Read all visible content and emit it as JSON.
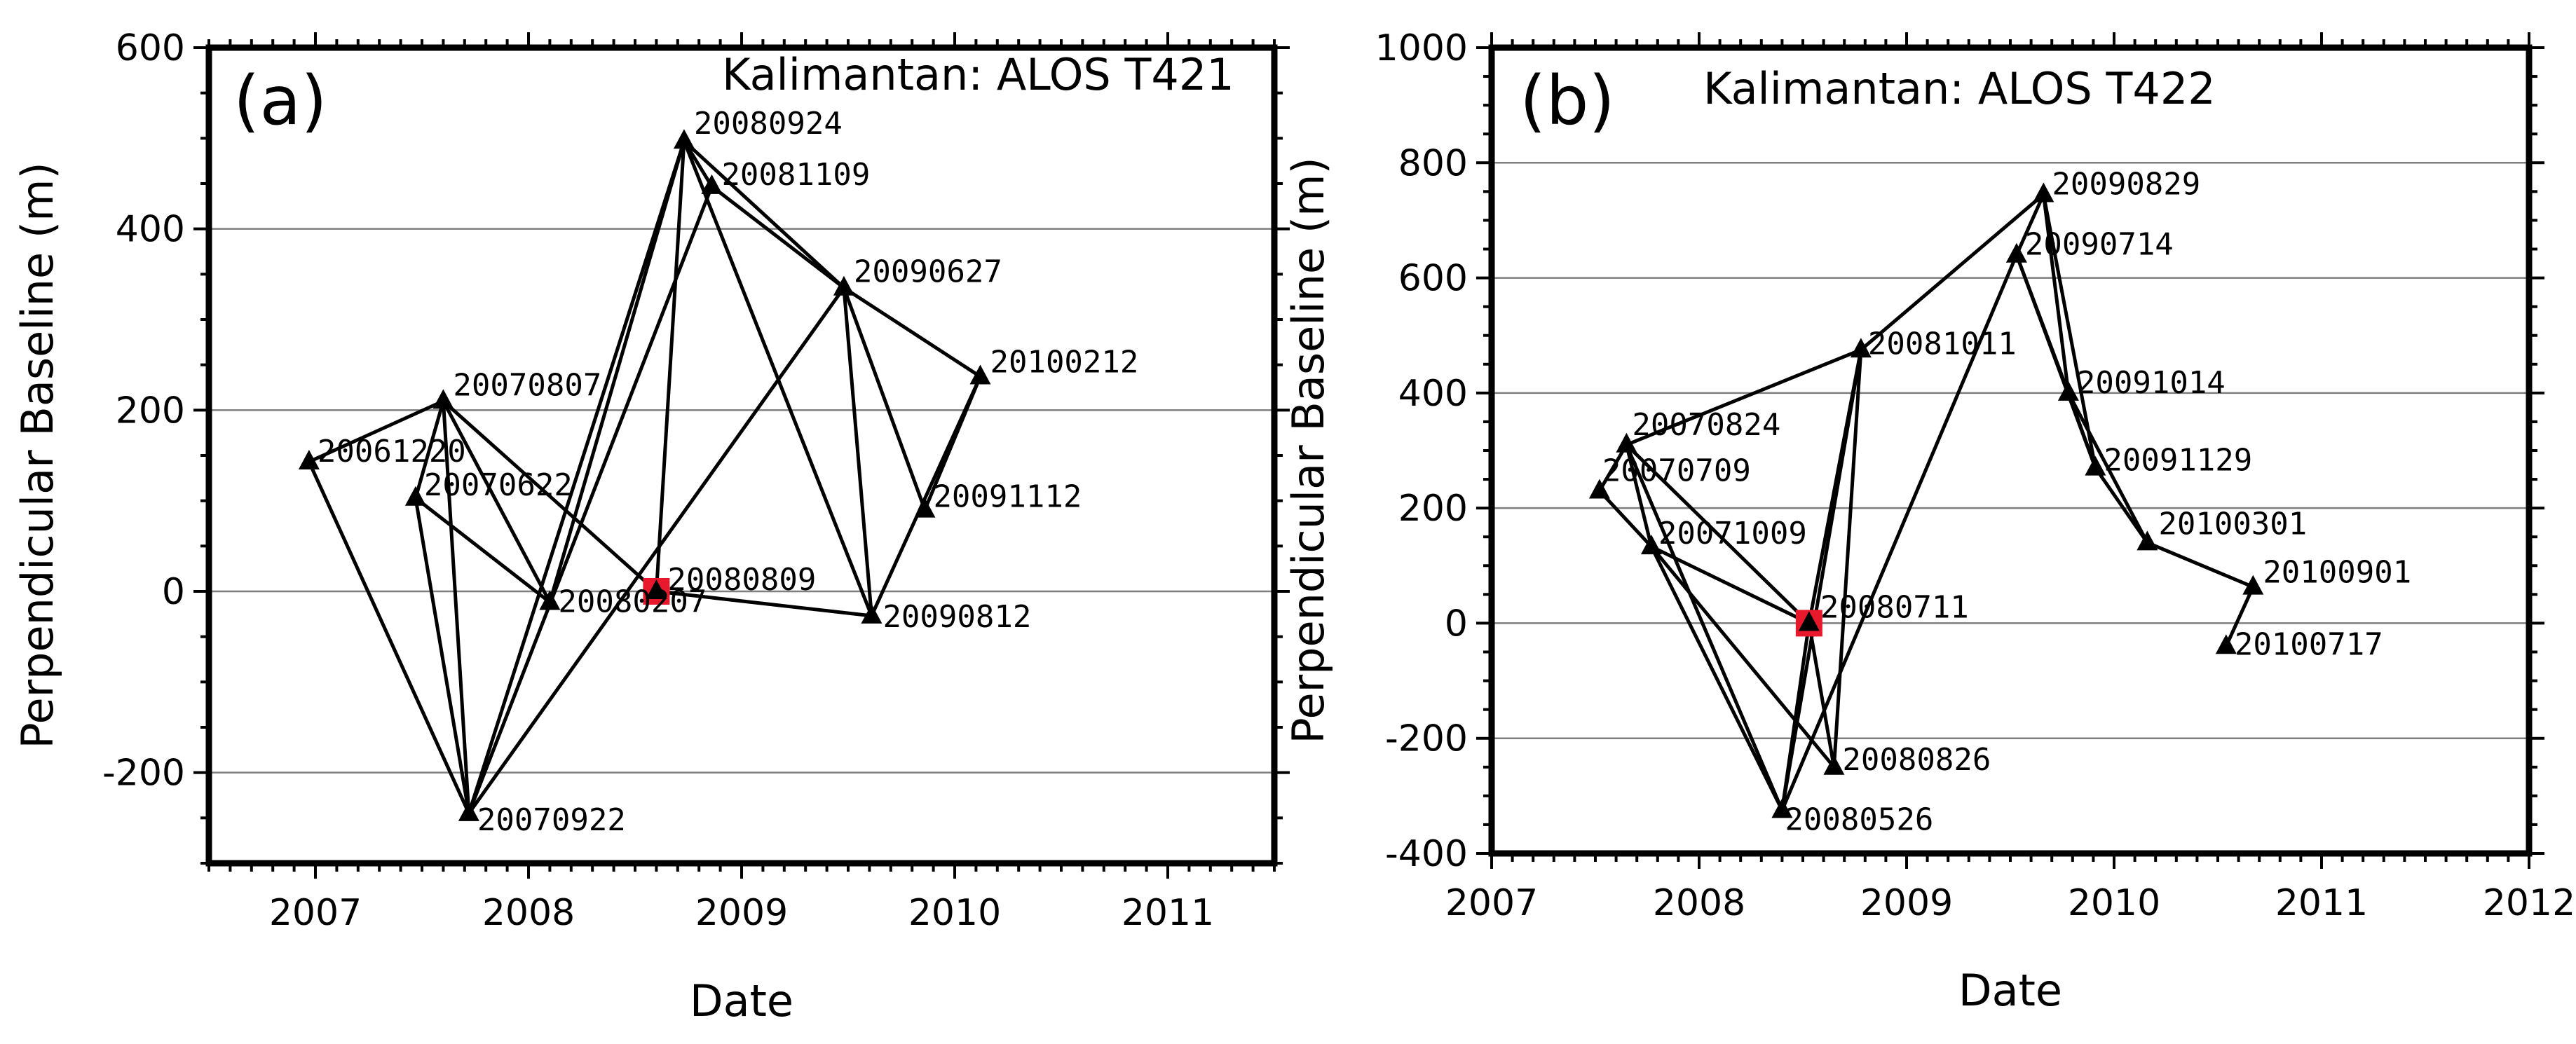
{
  "chart_data": [
    {
      "type": "scatter",
      "panel": "(a)",
      "title": "Kalimantan: ALOS T421",
      "xlabel": "Date",
      "ylabel": "Perpendicular Baseline (m)",
      "xlim": [
        2006.5,
        2011.5
      ],
      "ylim": [
        -300,
        600
      ],
      "xticks": [
        2007,
        2008,
        2009,
        2010,
        2011
      ],
      "xtick_labels": [
        "2007",
        "2008",
        "2009",
        "2010",
        "2011"
      ],
      "yticks": [
        -200,
        0,
        200,
        400,
        600
      ],
      "ytick_labels": [
        "-200",
        "0",
        "200",
        "400",
        "600"
      ],
      "grid": "horizontal",
      "master": "20080809",
      "points": [
        {
          "label": "20061220",
          "x": 2006.97,
          "y": 143
        },
        {
          "label": "20070622",
          "x": 2007.47,
          "y": 103
        },
        {
          "label": "20070807",
          "x": 2007.6,
          "y": 210
        },
        {
          "label": "20070922",
          "x": 2007.72,
          "y": -245
        },
        {
          "label": "20080207",
          "x": 2008.1,
          "y": -12
        },
        {
          "label": "20080809",
          "x": 2008.6,
          "y": 0
        },
        {
          "label": "20080924",
          "x": 2008.73,
          "y": 497
        },
        {
          "label": "20081109",
          "x": 2008.86,
          "y": 447
        },
        {
          "label": "20090627",
          "x": 2009.48,
          "y": 335
        },
        {
          "label": "20090812",
          "x": 2009.61,
          "y": -27
        },
        {
          "label": "20091112",
          "x": 2009.86,
          "y": 90
        },
        {
          "label": "20100212",
          "x": 2010.12,
          "y": 237
        }
      ],
      "edges": [
        [
          "20061220",
          "20070807"
        ],
        [
          "20061220",
          "20070922"
        ],
        [
          "20070622",
          "20070807"
        ],
        [
          "20070622",
          "20070922"
        ],
        [
          "20070622",
          "20080207"
        ],
        [
          "20070807",
          "20070922"
        ],
        [
          "20070807",
          "20080207"
        ],
        [
          "20070807",
          "20080809"
        ],
        [
          "20070922",
          "20080924"
        ],
        [
          "20070922",
          "20081109"
        ],
        [
          "20070922",
          "20090627"
        ],
        [
          "20080207",
          "20080924"
        ],
        [
          "20080809",
          "20080924"
        ],
        [
          "20080809",
          "20090812"
        ],
        [
          "20080924",
          "20081109"
        ],
        [
          "20080924",
          "20090627"
        ],
        [
          "20080924",
          "20090812"
        ],
        [
          "20081109",
          "20090627"
        ],
        [
          "20090627",
          "20090812"
        ],
        [
          "20090627",
          "20091112"
        ],
        [
          "20090627",
          "20100212"
        ],
        [
          "20090812",
          "20100212"
        ],
        [
          "20091112",
          "20100212"
        ]
      ]
    },
    {
      "type": "scatter",
      "panel": "(b)",
      "title": "Kalimantan: ALOS T422",
      "xlabel": "Date",
      "ylabel": "Perpendicular Baseline (m)",
      "xlim": [
        2007,
        2012
      ],
      "ylim": [
        -400,
        1000
      ],
      "xticks": [
        2007,
        2008,
        2009,
        2010,
        2011,
        2012
      ],
      "xtick_labels": [
        "2007",
        "2008",
        "2009",
        "2010",
        "2011",
        "2012"
      ],
      "yticks": [
        -400,
        -200,
        0,
        200,
        400,
        600,
        800,
        1000
      ],
      "ytick_labels": [
        "-400",
        "-200",
        "0",
        "200",
        "400",
        "600",
        "800",
        "1000"
      ],
      "grid": "horizontal",
      "master": "20080711",
      "points": [
        {
          "label": "20070709",
          "x": 2007.52,
          "y": 230
        },
        {
          "label": "20070824",
          "x": 2007.65,
          "y": 310
        },
        {
          "label": "20071009",
          "x": 2007.77,
          "y": 133
        },
        {
          "label": "20080526",
          "x": 2008.4,
          "y": -325
        },
        {
          "label": "20080711",
          "x": 2008.53,
          "y": 0
        },
        {
          "label": "20080826",
          "x": 2008.65,
          "y": -250
        },
        {
          "label": "20081011",
          "x": 2008.78,
          "y": 475
        },
        {
          "label": "20090714",
          "x": 2009.53,
          "y": 640
        },
        {
          "label": "20090829",
          "x": 2009.66,
          "y": 745
        },
        {
          "label": "20091014",
          "x": 2009.78,
          "y": 400
        },
        {
          "label": "20091129",
          "x": 2009.91,
          "y": 270
        },
        {
          "label": "20100301",
          "x": 2010.16,
          "y": 140
        },
        {
          "label": "20100717",
          "x": 2010.54,
          "y": -40
        },
        {
          "label": "20100901",
          "x": 2010.67,
          "y": 63
        }
      ],
      "edges": [
        [
          "20070709",
          "20070824"
        ],
        [
          "20070709",
          "20071009"
        ],
        [
          "20070824",
          "20071009"
        ],
        [
          "20070824",
          "20080711"
        ],
        [
          "20070824",
          "20080526"
        ],
        [
          "20070824",
          "20081011"
        ],
        [
          "20071009",
          "20080526"
        ],
        [
          "20071009",
          "20080826"
        ],
        [
          "20071009",
          "20080711"
        ],
        [
          "20080526",
          "20081011"
        ],
        [
          "20080526",
          "20080711"
        ],
        [
          "20080526",
          "20090714"
        ],
        [
          "20080711",
          "20080826"
        ],
        [
          "20080711",
          "20081011"
        ],
        [
          "20080826",
          "20081011"
        ],
        [
          "20081011",
          "20090829"
        ],
        [
          "20090714",
          "20090829"
        ],
        [
          "20090714",
          "20091014"
        ],
        [
          "20090714",
          "20091129"
        ],
        [
          "20090829",
          "20091014"
        ],
        [
          "20090829",
          "20091129"
        ],
        [
          "20091014",
          "20091129"
        ],
        [
          "20091014",
          "20100301"
        ],
        [
          "20091129",
          "20100301"
        ],
        [
          "20100301",
          "20100901"
        ],
        [
          "20100717",
          "20100901"
        ]
      ]
    }
  ]
}
